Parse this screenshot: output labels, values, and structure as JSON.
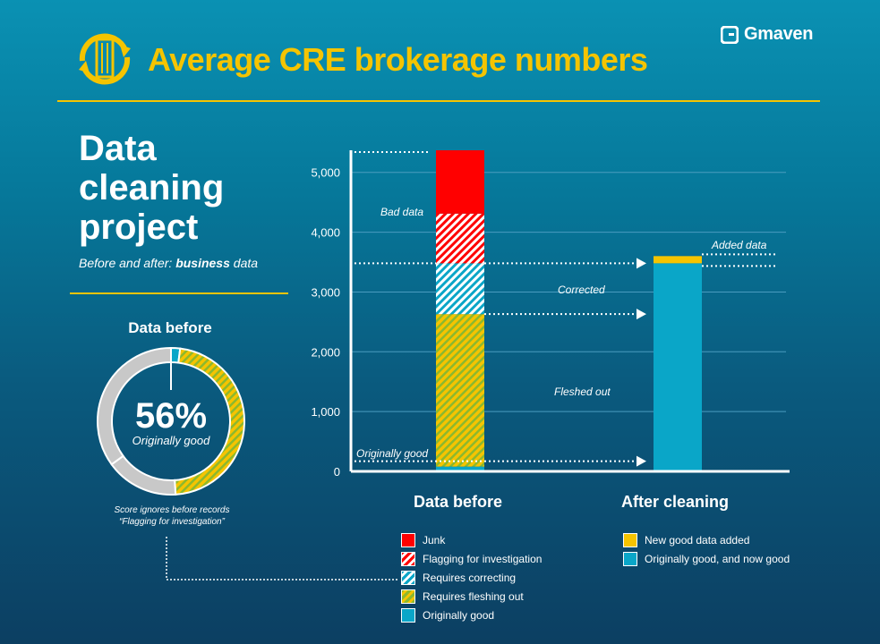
{
  "header": {
    "title": "Average CRE brokerage numbers",
    "brand": "Gmaven",
    "brand_color": "#f5c400"
  },
  "project": {
    "title": "Data cleaning project",
    "subtitle_prefix": "Before and after:",
    "subtitle_emphasis": "business",
    "subtitle_suffix": "data"
  },
  "donut": {
    "heading": "Data before",
    "percent": "56%",
    "label": "Originally good",
    "note_line1": "Score ignores before records",
    "note_line2": "“Flagging for investigation”"
  },
  "annotations": {
    "bad_data": "Bad data",
    "added_data": "Added data",
    "corrected": "Corrected",
    "fleshed_out": "Fleshed out",
    "originally_good": "Originally good"
  },
  "colors": {
    "junk": "#ff0000",
    "yellow": "#f5c400",
    "teal": "#0aa6c8",
    "gray": "#c8c8c8"
  },
  "chart_data": [
    {
      "type": "bar",
      "stacked": true,
      "categories": [
        "Data before",
        "After cleaning"
      ],
      "series": [
        {
          "name": "Originally good",
          "values": [
            80,
            null
          ]
        },
        {
          "name": "Requires fleshing out",
          "values": [
            2550,
            null
          ]
        },
        {
          "name": "Requires correcting",
          "values": [
            850,
            null
          ]
        },
        {
          "name": "Flagging for investigation",
          "values": [
            830,
            null
          ]
        },
        {
          "name": "Junk",
          "values": [
            1060,
            null
          ]
        },
        {
          "name": "Originally good, and now good",
          "values": [
            null,
            3480
          ]
        },
        {
          "name": "New good data added",
          "values": [
            null,
            120
          ]
        }
      ],
      "yticks": [
        "0",
        "1,000",
        "2,000",
        "3,000",
        "4,000",
        "5,000"
      ],
      "ylim": [
        0,
        5370
      ],
      "grid": true,
      "legend_before": [
        "Junk",
        "Flagging for investigation",
        "Requires correcting",
        "Requires fleshing out",
        "Originally good"
      ],
      "legend_after": [
        "New good data added",
        "Originally good, and now good"
      ]
    },
    {
      "type": "pie",
      "donut": true,
      "title": "Data before",
      "slices": [
        {
          "name": "Originally good",
          "value": 2
        },
        {
          "name": "Requires fleshing out",
          "value": 47
        },
        {
          "name": "Requires correcting",
          "value": 16
        },
        {
          "name": "Junk",
          "value": 35
        }
      ]
    }
  ]
}
